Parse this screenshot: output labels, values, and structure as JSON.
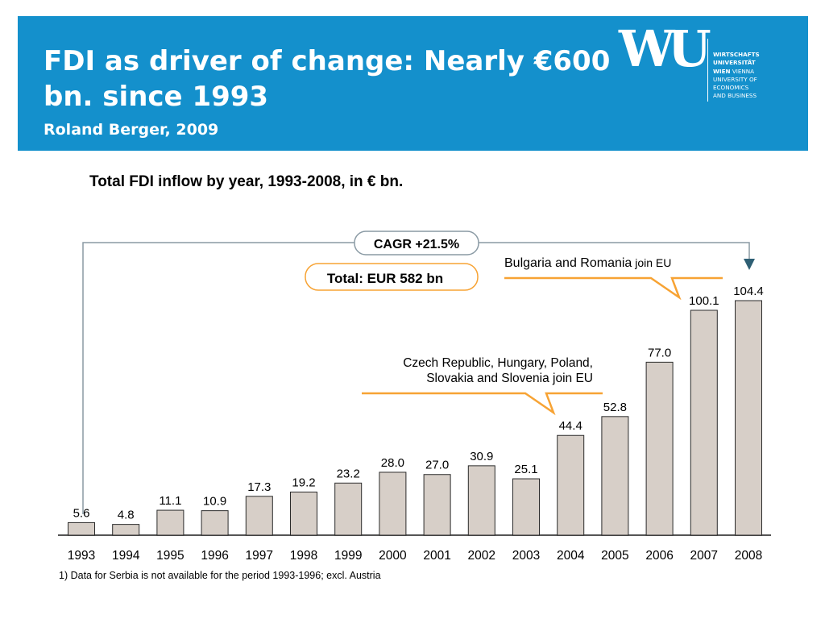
{
  "header": {
    "title": "FDI as driver of change: Nearly €600 bn. since 1993",
    "subtitle": "Roland Berger, 2009"
  },
  "logo": {
    "mark": "WU",
    "lines": [
      {
        "bold": "WIRTSCHAFTS",
        "rest": ""
      },
      {
        "bold": "UNIVERSITÄT",
        "rest": ""
      },
      {
        "bold": "WIEN",
        "rest": " VIENNA"
      },
      {
        "bold": "",
        "rest": "UNIVERSITY OF"
      },
      {
        "bold": "",
        "rest": "ECONOMICS"
      },
      {
        "bold": "",
        "rest": "AND BUSINESS"
      }
    ]
  },
  "colors": {
    "header_bg": "#1490cc",
    "bar_fill": "#d7cfc8",
    "callout_orange": "#f7a334",
    "arrow_line": "#8a9aa4",
    "arrow_head": "#2e5f74"
  },
  "chart_data": {
    "type": "bar",
    "title": "Total FDI inflow by year, 1993-2008, in € bn.",
    "categories": [
      "1993",
      "1994",
      "1995",
      "1996",
      "1997",
      "1998",
      "1999",
      "2000",
      "2001",
      "2002",
      "2003",
      "2004",
      "2005",
      "2006",
      "2007",
      "2008"
    ],
    "values": [
      5.6,
      4.8,
      11.1,
      10.9,
      17.3,
      19.2,
      23.2,
      28.0,
      27.0,
      30.9,
      25.1,
      44.4,
      52.8,
      77.0,
      100.1,
      104.4
    ],
    "value_labels": [
      "5.6",
      "4.8",
      "11.1",
      "10.9",
      "17.3",
      "19.2",
      "23.2",
      "28.0",
      "27.0",
      "30.9",
      "25.1",
      "44.4",
      "52.8",
      "77.0",
      "100.1",
      "104.4"
    ],
    "ylim": [
      0,
      104.4
    ],
    "grid": false,
    "legend": "none",
    "annotations": {
      "cagr": "CAGR +21.5%",
      "total": "Total: EUR 582 bn",
      "eu_2004": [
        "Czech Republic, Hungary, Poland,",
        "Slovakia and Slovenia join EU"
      ],
      "eu_2007_main": "Bulgaria and Romania",
      "eu_2007_small": " join EU"
    },
    "footnote": "1) Data for Serbia is not available for the period 1993-1996; excl. Austria"
  }
}
